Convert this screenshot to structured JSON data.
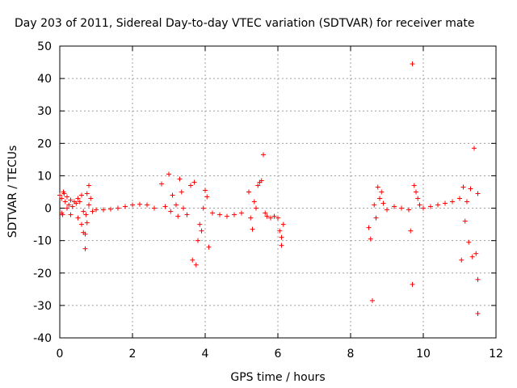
{
  "chart_data": {
    "type": "scatter",
    "title": "Day 203 of 2011, Sidereal Day-to-day VTEC variation (SDTVAR) for receiver mate",
    "xlabel": "GPS time / hours",
    "ylabel": "SDTVAR / TECUs",
    "xlim": [
      0,
      12
    ],
    "ylim": [
      -40,
      50
    ],
    "xticks": [
      0,
      2,
      4,
      6,
      8,
      10,
      12
    ],
    "yticks": [
      -40,
      -30,
      -20,
      -10,
      0,
      10,
      20,
      30,
      40,
      50
    ],
    "xtick_labels": [
      "0",
      "2",
      "4",
      "6",
      "8",
      "10",
      "12"
    ],
    "ytick_labels": [
      "-40",
      "-30",
      "-20",
      "-10",
      "0",
      "10",
      "20",
      "30",
      "40",
      "50"
    ],
    "grid": true,
    "marker": "+",
    "color": "#ff0000",
    "series": [
      {
        "name": "SDTVAR",
        "x": [
          0.0,
          0.05,
          0.08,
          0.12,
          0.15,
          0.2,
          0.25,
          0.3,
          0.35,
          0.4,
          0.45,
          0.5,
          0.55,
          0.6,
          0.65,
          0.7,
          0.75,
          0.8,
          0.85,
          0.05,
          0.1,
          0.2,
          0.3,
          0.5,
          0.6,
          0.65,
          0.7,
          0.72,
          0.75,
          0.8,
          0.9,
          1.0,
          1.2,
          1.4,
          1.6,
          1.8,
          2.0,
          2.2,
          2.4,
          2.6,
          2.8,
          2.9,
          3.0,
          3.05,
          3.1,
          3.2,
          3.25,
          3.3,
          3.35,
          3.4,
          3.5,
          3.6,
          3.65,
          3.7,
          3.75,
          3.8,
          3.85,
          3.9,
          3.95,
          4.0,
          4.05,
          4.1,
          4.2,
          4.4,
          4.6,
          4.8,
          5.0,
          5.2,
          5.25,
          5.3,
          5.35,
          5.4,
          5.45,
          5.5,
          5.55,
          5.6,
          5.65,
          5.7,
          5.8,
          5.9,
          6.0,
          6.05,
          6.1,
          6.1,
          6.15,
          8.5,
          8.55,
          8.6,
          8.65,
          8.7,
          8.75,
          8.8,
          8.85,
          8.9,
          9.0,
          9.2,
          9.4,
          9.6,
          9.65,
          9.7,
          9.7,
          9.75,
          9.8,
          9.85,
          9.9,
          10.0,
          10.2,
          10.4,
          10.6,
          10.8,
          11.0,
          11.05,
          11.1,
          11.15,
          11.2,
          11.25,
          11.3,
          11.35,
          11.4,
          11.45,
          11.5,
          11.5,
          11.5
        ],
        "values": [
          4.0,
          3.0,
          -2.0,
          4.5,
          2.0,
          3.5,
          1.0,
          2.5,
          0.5,
          2.0,
          1.5,
          3.0,
          2.0,
          4.0,
          -1.0,
          -12.5,
          4.5,
          7.0,
          3.0,
          -1.5,
          5.0,
          0.0,
          -2.0,
          -3.0,
          -5.0,
          -7.5,
          -8.0,
          -2.0,
          -4.5,
          1.0,
          -1.0,
          -0.5,
          -0.5,
          -0.3,
          0.0,
          0.5,
          1.0,
          1.2,
          1.0,
          0.0,
          7.5,
          0.5,
          10.5,
          -1.0,
          4.0,
          1.0,
          -2.5,
          9.0,
          5.0,
          0.0,
          -2.0,
          7.0,
          -16.0,
          8.0,
          -17.5,
          -10.0,
          -5.0,
          -7.0,
          0.0,
          5.5,
          3.5,
          -12.0,
          -1.5,
          -2.0,
          -2.5,
          -2.0,
          -1.5,
          5.0,
          -3.0,
          -6.5,
          2.0,
          0.0,
          7.0,
          8.0,
          8.5,
          16.5,
          -1.5,
          -2.5,
          -3.0,
          -2.5,
          -3.0,
          -7.0,
          -11.5,
          -9.0,
          -5.0,
          -6.0,
          -9.5,
          -28.5,
          1.0,
          -3.0,
          6.5,
          3.0,
          5.0,
          1.5,
          -0.5,
          0.5,
          0.0,
          -0.5,
          -7.0,
          44.5,
          -23.5,
          7.0,
          5.0,
          3.0,
          1.0,
          0.0,
          0.5,
          1.0,
          1.5,
          2.0,
          3.0,
          -16.0,
          6.5,
          -4.0,
          2.0,
          -10.5,
          6.0,
          -15.0,
          18.5,
          -14.0,
          -22.0,
          -32.5,
          4.5
        ]
      }
    ]
  }
}
